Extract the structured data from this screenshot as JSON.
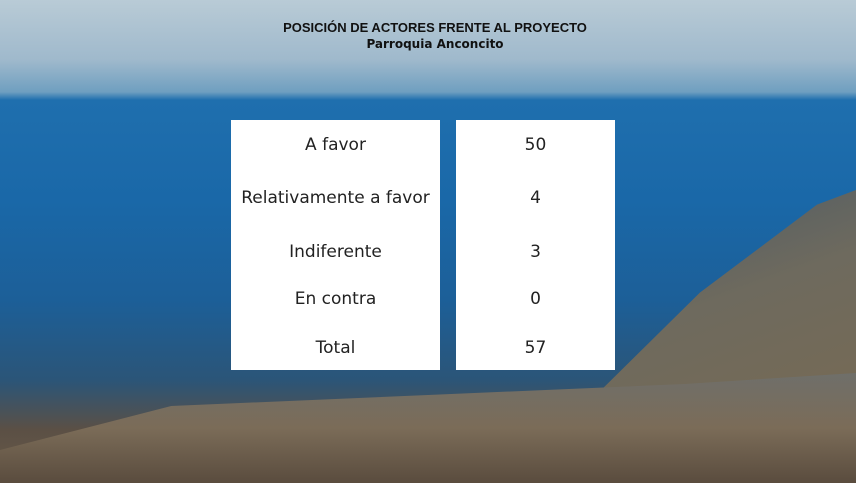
{
  "header": {
    "title": "POSICIÓN DE ACTORES FRENTE AL PROYECTO",
    "subtitle": "Parroquia Anconcito"
  },
  "table": {
    "rows": [
      [
        "A favor",
        "50"
      ],
      [
        "Relativamente a favor",
        "4"
      ],
      [
        "Indiferente",
        "3"
      ],
      [
        "En contra",
        "0"
      ],
      [
        "Total",
        "57"
      ]
    ]
  }
}
